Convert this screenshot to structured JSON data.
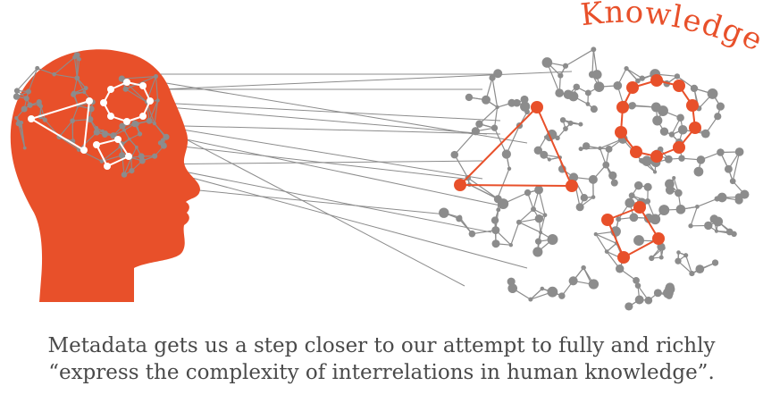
{
  "label": "Knowledge",
  "caption": {
    "line1": "Metadata gets us a step closer to our attempt to fully and richly",
    "line2": "“express the complexity of interrelations in human knowledge”."
  },
  "colors": {
    "accent": "#e8502a",
    "network": "#8c8c8c",
    "brain_node": "#ffffff",
    "text": "#4a4a4a"
  }
}
